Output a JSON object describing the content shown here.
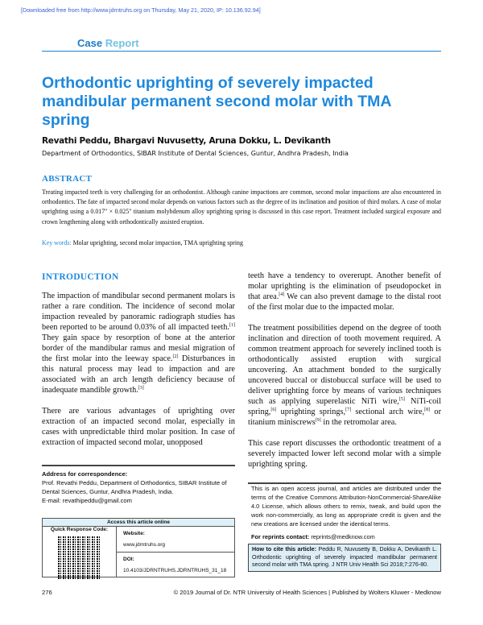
{
  "download_notice": "[Downloaded free from http://www.jdrntruhs.org on Thursday, May 21, 2020, IP: 10.136.92.94]",
  "section_label": {
    "word1": "Case",
    "word2": "Report"
  },
  "title": "Orthodontic uprighting of severely impacted mandibular permanent second molar with TMA spring",
  "authors": "Revathi Peddu, Bhargavi Nuvusetty, Aruna Dokku, L. Devikanth",
  "affiliation": "Department of Orthodontics, SIBAR Institute of Dental Sciences, Guntur, Andhra Pradesh, India",
  "abstract": {
    "heading": "ABSTRACT",
    "text": "Treating impacted teeth is very challenging for an orthodontist. Although canine impactions are common, second molar impactions are also encountered in orthodontics. The fate of impacted second molar depends on various factors such as the degree of its inclination and position of third molars. A case of molar uprighting using a 0.017\" × 0.025\" titanium molybdenum alloy uprighting spring is discussed in this case report. Treatment included surgical exposure and crown lengthening along with orthodontically assisted eruption.",
    "keywords_label": "Key words:",
    "keywords": "Molar uprighting, second molar impaction, TMA uprighting spring"
  },
  "introduction": {
    "heading": "INTRODUCTION",
    "p1": [
      "The impaction of mandibular second permanent molars is rather a rare condition. The incidence of second molar impaction revealed by panoramic radiograph studies has been reported to be around 0.03% of all impacted teeth.",
      "[1]",
      " They gain space by resorption of bone at the anterior border of the mandibular ramus and mesial migration of the first molar into the leeway space.",
      "[2]",
      " Disturbances in this natural process may lead to impaction and are associated with an arch length deficiency because of inadequate mandible growth.",
      "[3]"
    ],
    "p2": "There are various advantages of uprighting over extraction of an impacted second molar, especially in cases with unpredictable third molar position. In case of extraction of impacted second molar, unopposed",
    "p3": [
      "teeth have a tendency to overerupt. Another benefit of molar uprighting is the elimination of pseudopocket in that area.",
      "[4]",
      " We can also prevent damage to the distal root of the first molar due to the impacted molar."
    ],
    "p4": [
      "The treatment possibilities depend on the degree of tooth inclination and direction of tooth movement required. A common treatment approach for severely inclined tooth is orthodontically assisted eruption with surgical uncovering. An attachment bonded to the surgically uncovered buccal or distobuccal surface will be used to deliver uprighting force by means of various techniques such as applying superelastic NiTi wire,",
      "[5]",
      " NiTi-coil spring,",
      "[6]",
      " uprighting springs,",
      "[7]",
      " sectional arch wire,",
      "[8]",
      " or titanium miniscrews",
      "[9]",
      " in the retromolar area."
    ],
    "p5": "This case report discusses the orthodontic treatment of a severely impacted lower left second molar with a simple uprighting spring."
  },
  "correspondence": {
    "label": "Address for correspondence:",
    "line1": "Prof. Revathi Peddu, Department of Orthodontics, SIBAR Institute of Dental Sciences, Guntur, Andhra Pradesh, India.",
    "email": "E-mail: revathipeddu@gmail.com"
  },
  "access": {
    "header": "Access this article online",
    "qr_label": "Quick Response Code:",
    "website_label": "Website:",
    "website": "www.jdrntruhs.org",
    "doi_label": "DOI:",
    "doi": "10.4103/JDRNTRUHS.JDRNTRUHS_31_18"
  },
  "open_access": "This is an open access journal, and articles are distributed under the terms of the Creative Commons Attribution-NonCommercial-ShareAlike 4.0 License, which allows others to remix, tweak, and build upon the work non-commercially, as long as appropriate credit is given and the new creations are licensed under the identical terms.",
  "reprints": {
    "label": "For reprints contact:",
    "email": "reprints@medknow.com"
  },
  "citation": {
    "label": "How to cite this article:",
    "text": "Peddu R, Nuvusetty B, Dokku A, Devikanth L. Orthodontic uprighting of severely impacted mandibular permanent second molar with TMA spring. J NTR Univ Health Sci 2018;7:276-80."
  },
  "page_number": "276",
  "footer": "© 2019 Journal of Dr. NTR University of Health Sciences | Published by Wolters Kluwer - Medknow",
  "colors": {
    "accent": "#1d88dc",
    "report_light": "#72c4e6",
    "cite_bg": "#ddeef7"
  }
}
